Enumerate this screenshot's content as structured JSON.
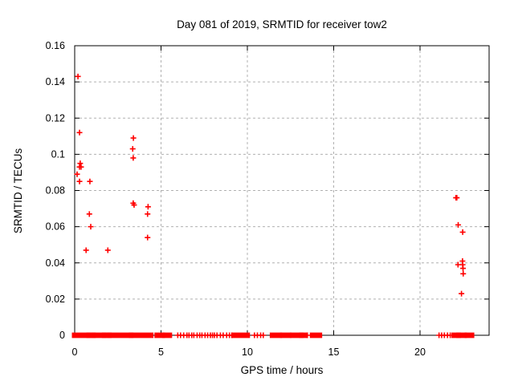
{
  "chart_data": {
    "type": "scatter",
    "title": "Day 081 of 2019, SRMTID for receiver tow2",
    "xlabel": "GPS time / hours",
    "ylabel": "SRMTID / TECUs",
    "xlim": [
      0,
      24
    ],
    "ylim": [
      0,
      0.16
    ],
    "xticks": [
      0,
      5,
      10,
      15,
      20
    ],
    "xtick_labels": [
      "0",
      "5",
      "10",
      "15",
      "20"
    ],
    "yticks": [
      0,
      0.02,
      0.04,
      0.06,
      0.08,
      0.1,
      0.12,
      0.14,
      0.16
    ],
    "ytick_labels": [
      "0",
      "0.02",
      "0.04",
      "0.06",
      "0.08",
      "0.1",
      "0.12",
      "0.14",
      "0.16"
    ],
    "grid": true,
    "legend": "none",
    "marker": "plus",
    "colors": {
      "marker": "#ff0000",
      "grid": "#b0b0b0",
      "axis": "#000000",
      "background": "#ffffff"
    },
    "series": [
      {
        "name": "SRMTID",
        "points": [
          [
            0.19,
            0.143
          ],
          [
            0.28,
            0.112
          ],
          [
            0.14,
            0.089
          ],
          [
            0.28,
            0.093
          ],
          [
            0.37,
            0.093
          ],
          [
            0.32,
            0.095
          ],
          [
            0.28,
            0.085
          ],
          [
            0.88,
            0.085
          ],
          [
            0.66,
            0.047
          ],
          [
            0.85,
            0.067
          ],
          [
            0.93,
            0.06
          ],
          [
            1.92,
            0.047
          ],
          [
            3.36,
            0.103
          ],
          [
            3.4,
            0.109
          ],
          [
            3.39,
            0.098
          ],
          [
            3.39,
            0.073
          ],
          [
            3.44,
            0.072
          ],
          [
            4.22,
            0.067
          ],
          [
            4.25,
            0.071
          ],
          [
            4.22,
            0.054
          ],
          [
            22.08,
            0.076
          ],
          [
            22.13,
            0.076
          ],
          [
            22.21,
            0.061
          ],
          [
            22.47,
            0.057
          ],
          [
            22.2,
            0.039
          ],
          [
            22.46,
            0.041
          ],
          [
            22.47,
            0.039
          ],
          [
            22.49,
            0.037
          ],
          [
            22.5,
            0.034
          ],
          [
            22.4,
            0.023
          ]
        ]
      }
    ],
    "zero_value_coverage": {
      "y": 0,
      "segments_hours": [
        [
          0.0,
          0.78
        ],
        [
          0.84,
          1.06
        ],
        [
          1.12,
          1.68
        ],
        [
          1.74,
          1.98
        ],
        [
          2.04,
          3.24
        ],
        [
          3.3,
          4.4
        ],
        [
          4.78,
          5.07
        ],
        [
          5.23,
          5.48
        ],
        [
          9.22,
          9.99
        ],
        [
          11.46,
          11.85
        ],
        [
          12.05,
          12.39
        ],
        [
          12.62,
          13.09
        ],
        [
          13.16,
          13.35
        ],
        [
          13.78,
          14.17
        ],
        [
          21.98,
          22.21
        ],
        [
          22.26,
          22.55
        ],
        [
          22.75,
          22.98
        ]
      ],
      "single_points_hours": [
        5.97,
        6.13,
        6.31,
        6.5,
        6.62,
        6.78,
        6.9,
        7.09,
        7.24,
        7.37,
        7.55,
        7.7,
        7.86,
        7.98,
        8.09,
        8.24,
        8.44,
        8.6,
        8.8,
        8.96,
        9.11,
        10.41,
        10.58,
        10.77,
        10.92,
        13.47,
        21.1,
        21.25,
        21.41,
        21.59,
        21.75,
        22.63
      ]
    }
  }
}
